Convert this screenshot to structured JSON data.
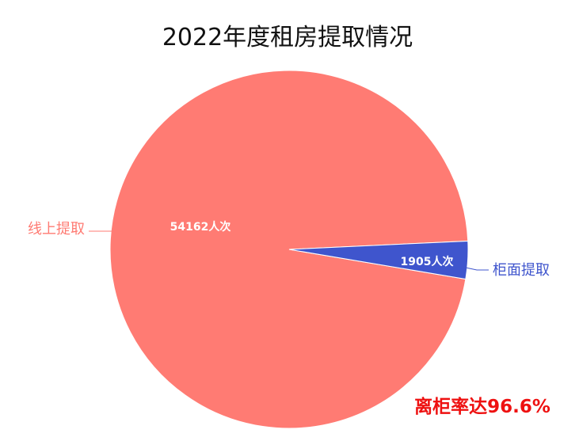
{
  "chart_data": {
    "type": "pie",
    "title": "2022年度租房提取情况",
    "slices": [
      {
        "name": "线上提取",
        "value": 54162,
        "label": "54162人次",
        "color": "#ff7b73"
      },
      {
        "name": "柜面提取",
        "value": 1905,
        "label": "1905人次",
        "color": "#3f55cd"
      }
    ],
    "annotation": {
      "text": "离柜率达96.6%",
      "color": "#ee1111"
    },
    "legend": "none"
  }
}
